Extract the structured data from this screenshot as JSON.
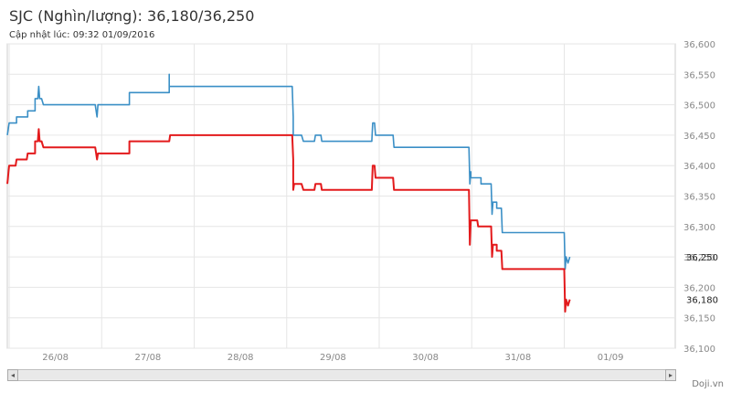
{
  "header": {
    "title": "SJC (Nghìn/lượng): 36,180/36,250",
    "updated": "Cập nhật lúc: 09:32 01/09/2016"
  },
  "credit": "Doji.vn",
  "scrollbar": {
    "left_arrow": "◂",
    "right_arrow": "▸"
  },
  "chart_data": {
    "type": "line",
    "x_unit": "days (26/08 = 0)",
    "xlim": [
      -0.52,
      6.7
    ],
    "ylim": [
      36100,
      36600
    ],
    "x_ticks": [
      {
        "x": 0,
        "label": "26/08"
      },
      {
        "x": 1,
        "label": "27/08"
      },
      {
        "x": 2,
        "label": "28/08"
      },
      {
        "x": 3,
        "label": "29/08"
      },
      {
        "x": 4,
        "label": "30/08"
      },
      {
        "x": 5,
        "label": "31/08"
      },
      {
        "x": 6,
        "label": "01/09"
      }
    ],
    "y_ticks": [
      36100,
      36150,
      36200,
      36250,
      36300,
      36350,
      36400,
      36450,
      36500,
      36550,
      36600
    ],
    "y_tick_labels": [
      "36,100",
      "36,150",
      "36,200",
      "36,250",
      "36,300",
      "36,350",
      "36,400",
      "36,450",
      "36,500",
      "36,550",
      "36,600"
    ],
    "last_labels": [
      {
        "value": 36250,
        "text": "36,250",
        "color": "#3a8fc6"
      },
      {
        "value": 36180,
        "text": "36,180",
        "color": "#e31a1c"
      }
    ],
    "grid": true,
    "series": [
      {
        "role": "sell",
        "color": "#3a8fc6",
        "points": [
          [
            -0.52,
            36450
          ],
          [
            -0.5,
            36470
          ],
          [
            -0.42,
            36470
          ],
          [
            -0.42,
            36480
          ],
          [
            -0.3,
            36480
          ],
          [
            -0.3,
            36490
          ],
          [
            -0.22,
            36490
          ],
          [
            -0.22,
            36510
          ],
          [
            -0.19,
            36510
          ],
          [
            -0.18,
            36530
          ],
          [
            -0.17,
            36510
          ],
          [
            -0.15,
            36510
          ],
          [
            -0.13,
            36500
          ],
          [
            0.43,
            36500
          ],
          [
            0.45,
            36480
          ],
          [
            0.46,
            36500
          ],
          [
            0.8,
            36500
          ],
          [
            0.8,
            36520
          ],
          [
            1.23,
            36520
          ],
          [
            1.23,
            36550
          ],
          [
            1.23,
            36530
          ],
          [
            2.56,
            36530
          ],
          [
            2.57,
            36480
          ],
          [
            2.57,
            36450
          ],
          [
            2.66,
            36450
          ],
          [
            2.68,
            36440
          ],
          [
            2.8,
            36440
          ],
          [
            2.81,
            36450
          ],
          [
            2.87,
            36450
          ],
          [
            2.88,
            36440
          ],
          [
            3.42,
            36440
          ],
          [
            3.43,
            36470
          ],
          [
            3.45,
            36470
          ],
          [
            3.46,
            36450
          ],
          [
            3.65,
            36450
          ],
          [
            3.66,
            36430
          ],
          [
            4.47,
            36430
          ],
          [
            4.48,
            36370
          ],
          [
            4.49,
            36390
          ],
          [
            4.49,
            36380
          ],
          [
            4.6,
            36380
          ],
          [
            4.6,
            36370
          ],
          [
            4.71,
            36370
          ],
          [
            4.72,
            36320
          ],
          [
            4.73,
            36340
          ],
          [
            4.77,
            36340
          ],
          [
            4.77,
            36330
          ],
          [
            4.82,
            36330
          ],
          [
            4.83,
            36290
          ],
          [
            5.5,
            36290
          ],
          [
            5.51,
            36230
          ],
          [
            5.52,
            36250
          ],
          [
            5.54,
            36240
          ],
          [
            5.56,
            36250
          ]
        ]
      },
      {
        "role": "buy",
        "color": "#e31a1c",
        "points": [
          [
            -0.52,
            36370
          ],
          [
            -0.5,
            36400
          ],
          [
            -0.43,
            36400
          ],
          [
            -0.42,
            36410
          ],
          [
            -0.31,
            36410
          ],
          [
            -0.3,
            36420
          ],
          [
            -0.22,
            36420
          ],
          [
            -0.22,
            36440
          ],
          [
            -0.19,
            36440
          ],
          [
            -0.18,
            36460
          ],
          [
            -0.17,
            36440
          ],
          [
            -0.15,
            36440
          ],
          [
            -0.13,
            36430
          ],
          [
            0.43,
            36430
          ],
          [
            0.45,
            36410
          ],
          [
            0.46,
            36420
          ],
          [
            0.8,
            36420
          ],
          [
            0.8,
            36440
          ],
          [
            1.23,
            36440
          ],
          [
            1.24,
            36450
          ],
          [
            2.56,
            36450
          ],
          [
            2.57,
            36410
          ],
          [
            2.57,
            36360
          ],
          [
            2.58,
            36370
          ],
          [
            2.66,
            36370
          ],
          [
            2.68,
            36360
          ],
          [
            2.8,
            36360
          ],
          [
            2.81,
            36370
          ],
          [
            2.87,
            36370
          ],
          [
            2.88,
            36360
          ],
          [
            3.42,
            36360
          ],
          [
            3.43,
            36400
          ],
          [
            3.45,
            36400
          ],
          [
            3.46,
            36380
          ],
          [
            3.65,
            36380
          ],
          [
            3.66,
            36360
          ],
          [
            4.47,
            36360
          ],
          [
            4.48,
            36270
          ],
          [
            4.49,
            36310
          ],
          [
            4.56,
            36310
          ],
          [
            4.57,
            36300
          ],
          [
            4.71,
            36300
          ],
          [
            4.72,
            36250
          ],
          [
            4.73,
            36270
          ],
          [
            4.77,
            36270
          ],
          [
            4.77,
            36260
          ],
          [
            4.82,
            36260
          ],
          [
            4.83,
            36230
          ],
          [
            5.5,
            36230
          ],
          [
            5.51,
            36160
          ],
          [
            5.52,
            36180
          ],
          [
            5.54,
            36170
          ],
          [
            5.56,
            36180
          ]
        ]
      }
    ]
  }
}
